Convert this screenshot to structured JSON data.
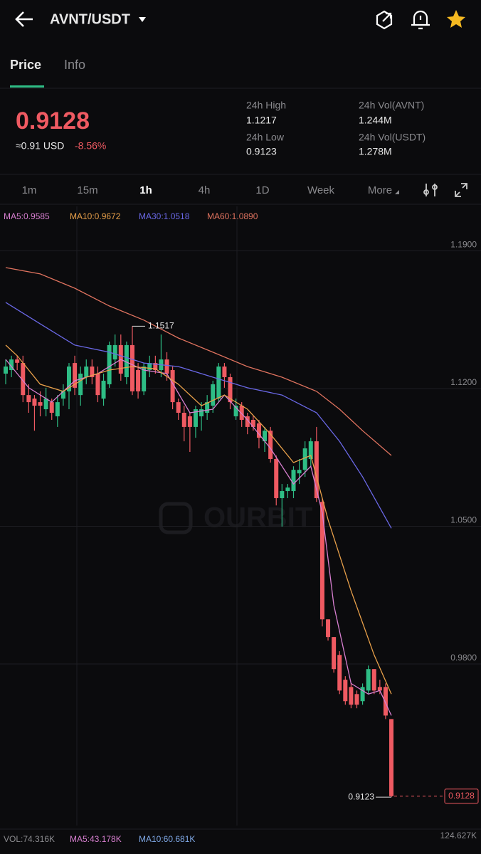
{
  "header": {
    "pair": "AVNT/USDT"
  },
  "tabs": [
    "Price",
    "Info"
  ],
  "ticker": {
    "last_price": "0.9128",
    "usd_approx": "≈0.91 USD",
    "change": "-8.56%",
    "stats": [
      {
        "label": "24h High",
        "value": "1.1217"
      },
      {
        "label": "24h Vol(AVNT)",
        "value": "1.244M"
      },
      {
        "label": "24h Low",
        "value": "0.9123"
      },
      {
        "label": "24h Vol(USDT)",
        "value": "1.278M"
      }
    ]
  },
  "intervals": [
    "1m",
    "15m",
    "1h",
    "4h",
    "1D",
    "Week",
    "More"
  ],
  "watermark": "OURBIT",
  "volume_bar": {
    "vol": "VOL:74.316K",
    "ma5": "MA5:43.178K",
    "ma10": "MA10:60.681K",
    "axis_max": "124.627K"
  },
  "chart_data": {
    "type": "candlestick",
    "up_color": "#2ebd85",
    "down_color": "#ef5a62",
    "open": [
      1.1276,
      1.1294,
      1.1348,
      1.133,
      1.1167,
      1.1149,
      1.1131,
      1.1095,
      1.1131,
      1.1059,
      1.1149,
      1.1186,
      1.133,
      1.1167,
      1.1258,
      1.1312,
      1.1276,
      1.1149,
      1.1222,
      1.1348,
      1.1421,
      1.1258,
      1.1421,
      1.1294,
      1.1186,
      1.1294,
      1.133,
      1.1294,
      1.1348,
      1.1294,
      1.1131,
      1.1077,
      1.1059,
      1.1005,
      1.1059,
      1.1077,
      1.1113,
      1.1149,
      1.1312,
      1.1258,
      1.1059,
      1.1113,
      1.1059,
      1.1041,
      1.1023,
      1.0932,
      1.0986,
      1.0842,
      1.0643,
      1.0679,
      1.0679,
      1.0769,
      1.0787,
      1.0842,
      1.0932,
      1.0624,
      1.0027,
      0.9937,
      0.9846,
      0.972,
      0.9683,
      0.9647,
      0.9611,
      0.9665,
      0.9774,
      0.9683,
      0.9683,
      0.952
    ],
    "close": [
      1.1312,
      1.1348,
      1.1331,
      1.1167,
      1.1131,
      1.1113,
      1.1113,
      1.1149,
      1.1077,
      1.1131,
      1.1186,
      1.1312,
      1.1204,
      1.1276,
      1.1312,
      1.1258,
      1.1167,
      1.124,
      1.1421,
      1.1421,
      1.1276,
      1.1421,
      1.1186,
      1.1186,
      1.1312,
      1.133,
      1.1294,
      1.1348,
      1.1276,
      1.1131,
      1.1077,
      1.1005,
      1.1005,
      1.1095,
      1.1095,
      1.1131,
      1.1222,
      1.1312,
      1.1258,
      1.1131,
      1.1113,
      1.1041,
      1.1005,
      1.1005,
      1.095,
      1.0986,
      1.0842,
      1.0643,
      1.0679,
      1.0697,
      1.0787,
      1.0787,
      1.0896,
      1.0932,
      1.0643,
      1.0027,
      0.9937,
      0.9774,
      0.9665,
      0.9611,
      0.9593,
      0.9593,
      0.9683,
      0.9774,
      0.9665,
      0.9665,
      0.9538,
      0.9128
    ],
    "high": [
      1.1348,
      1.1367,
      1.1367,
      1.1367,
      1.1222,
      1.1167,
      1.1186,
      1.1204,
      1.1149,
      1.1167,
      1.1222,
      1.133,
      1.1367,
      1.1312,
      1.1348,
      1.1348,
      1.1312,
      1.1276,
      1.1439,
      1.1475,
      1.1475,
      1.1439,
      1.1517,
      1.133,
      1.133,
      1.1367,
      1.1367,
      1.1475,
      1.1385,
      1.1312,
      1.1149,
      1.1113,
      1.1077,
      1.1113,
      1.1131,
      1.1167,
      1.124,
      1.133,
      1.133,
      1.1276,
      1.1149,
      1.1131,
      1.1077,
      1.1059,
      1.1041,
      1.1005,
      1.1005,
      1.086,
      1.0715,
      1.0715,
      1.0805,
      1.0842,
      1.0932,
      1.095,
      1.1005,
      1.0643,
      1.0027,
      0.9937,
      0.9865,
      0.9738,
      0.9701,
      0.9665,
      0.9701,
      0.9792,
      0.9774,
      0.972,
      0.9701,
      0.952
    ],
    "low": [
      1.1222,
      1.1258,
      1.1294,
      1.1131,
      1.1077,
      1.0986,
      1.1059,
      1.1059,
      1.1041,
      1.1005,
      1.1113,
      1.1095,
      1.1167,
      1.1113,
      1.1222,
      1.1222,
      1.1131,
      1.1113,
      1.1204,
      1.1312,
      1.124,
      1.1222,
      1.1167,
      1.1149,
      1.1167,
      1.1258,
      1.1276,
      1.1258,
      1.124,
      1.1095,
      1.1041,
      1.0932,
      1.0878,
      1.095,
      1.0986,
      1.1041,
      1.1077,
      1.1131,
      1.1204,
      1.1095,
      1.1041,
      1.1005,
      1.0968,
      1.0986,
      1.0896,
      1.0878,
      1.0824,
      1.0606,
      1.0498,
      1.0643,
      1.0643,
      1.0715,
      1.0751,
      1.0805,
      1.0624,
      0.9991,
      0.9919,
      0.9756,
      0.9647,
      0.9593,
      0.9575,
      0.9575,
      0.9593,
      0.9647,
      0.9647,
      0.9647,
      0.952,
      0.9123
    ],
    "ylim": [
      0.9015,
      1.209
    ],
    "yticks": [
      {
        "value": 1.19,
        "label": "1.1900"
      },
      {
        "value": 1.12,
        "label": "1.1200"
      },
      {
        "value": 1.05,
        "label": "1.0500"
      },
      {
        "value": 0.98,
        "label": "0.9800"
      }
    ],
    "grid": true,
    "ma": [
      {
        "name": "MA5:0.9585",
        "color": "#d77fd0",
        "x": [
          0,
          4,
          8,
          12,
          16,
          20,
          24,
          28,
          32,
          36,
          38,
          42,
          46,
          50,
          53,
          55,
          57,
          60,
          63,
          65,
          67
        ],
        "values": [
          1.1348,
          1.1204,
          1.1131,
          1.124,
          1.1276,
          1.1348,
          1.1294,
          1.1276,
          1.1077,
          1.1095,
          1.1167,
          1.1041,
          1.0896,
          1.0715,
          1.0805,
          1.057,
          1.01,
          0.9701,
          0.9647,
          0.9665,
          0.9538
        ]
      },
      {
        "name": "MA10:0.9672",
        "color": "#e8a04a",
        "x": [
          0,
          2,
          6,
          10,
          14,
          18,
          22,
          26,
          30,
          34,
          38,
          42,
          46,
          50,
          53,
          56,
          60,
          64,
          67
        ],
        "values": [
          1.1421,
          1.1367,
          1.1222,
          1.1186,
          1.1258,
          1.1294,
          1.1312,
          1.1301,
          1.1222,
          1.1113,
          1.1167,
          1.1095,
          1.0968,
          1.0824,
          1.086,
          1.0534,
          1.0172,
          0.9846,
          0.9647
        ]
      },
      {
        "name": "MA30:1.0518",
        "color": "#6a68e6",
        "x": [
          0,
          6,
          12,
          18,
          24,
          30,
          36,
          42,
          48,
          54,
          58,
          62,
          67
        ],
        "values": [
          1.1638,
          1.1529,
          1.1421,
          1.1385,
          1.133,
          1.1312,
          1.1258,
          1.1204,
          1.1167,
          1.1077,
          1.0932,
          1.0751,
          1.049
        ]
      },
      {
        "name": "MA60:1.0890",
        "color": "#e0735f",
        "x": [
          0,
          6,
          12,
          18,
          24,
          30,
          36,
          42,
          48,
          54,
          58,
          62,
          67
        ],
        "values": [
          1.1815,
          1.1783,
          1.171,
          1.162,
          1.1548,
          1.1457,
          1.1385,
          1.1312,
          1.1258,
          1.1186,
          1.1095,
          1.0986,
          1.086
        ]
      }
    ],
    "high_marker": 1.1517,
    "low_marker": 0.9123,
    "last_price": 0.9128
  }
}
